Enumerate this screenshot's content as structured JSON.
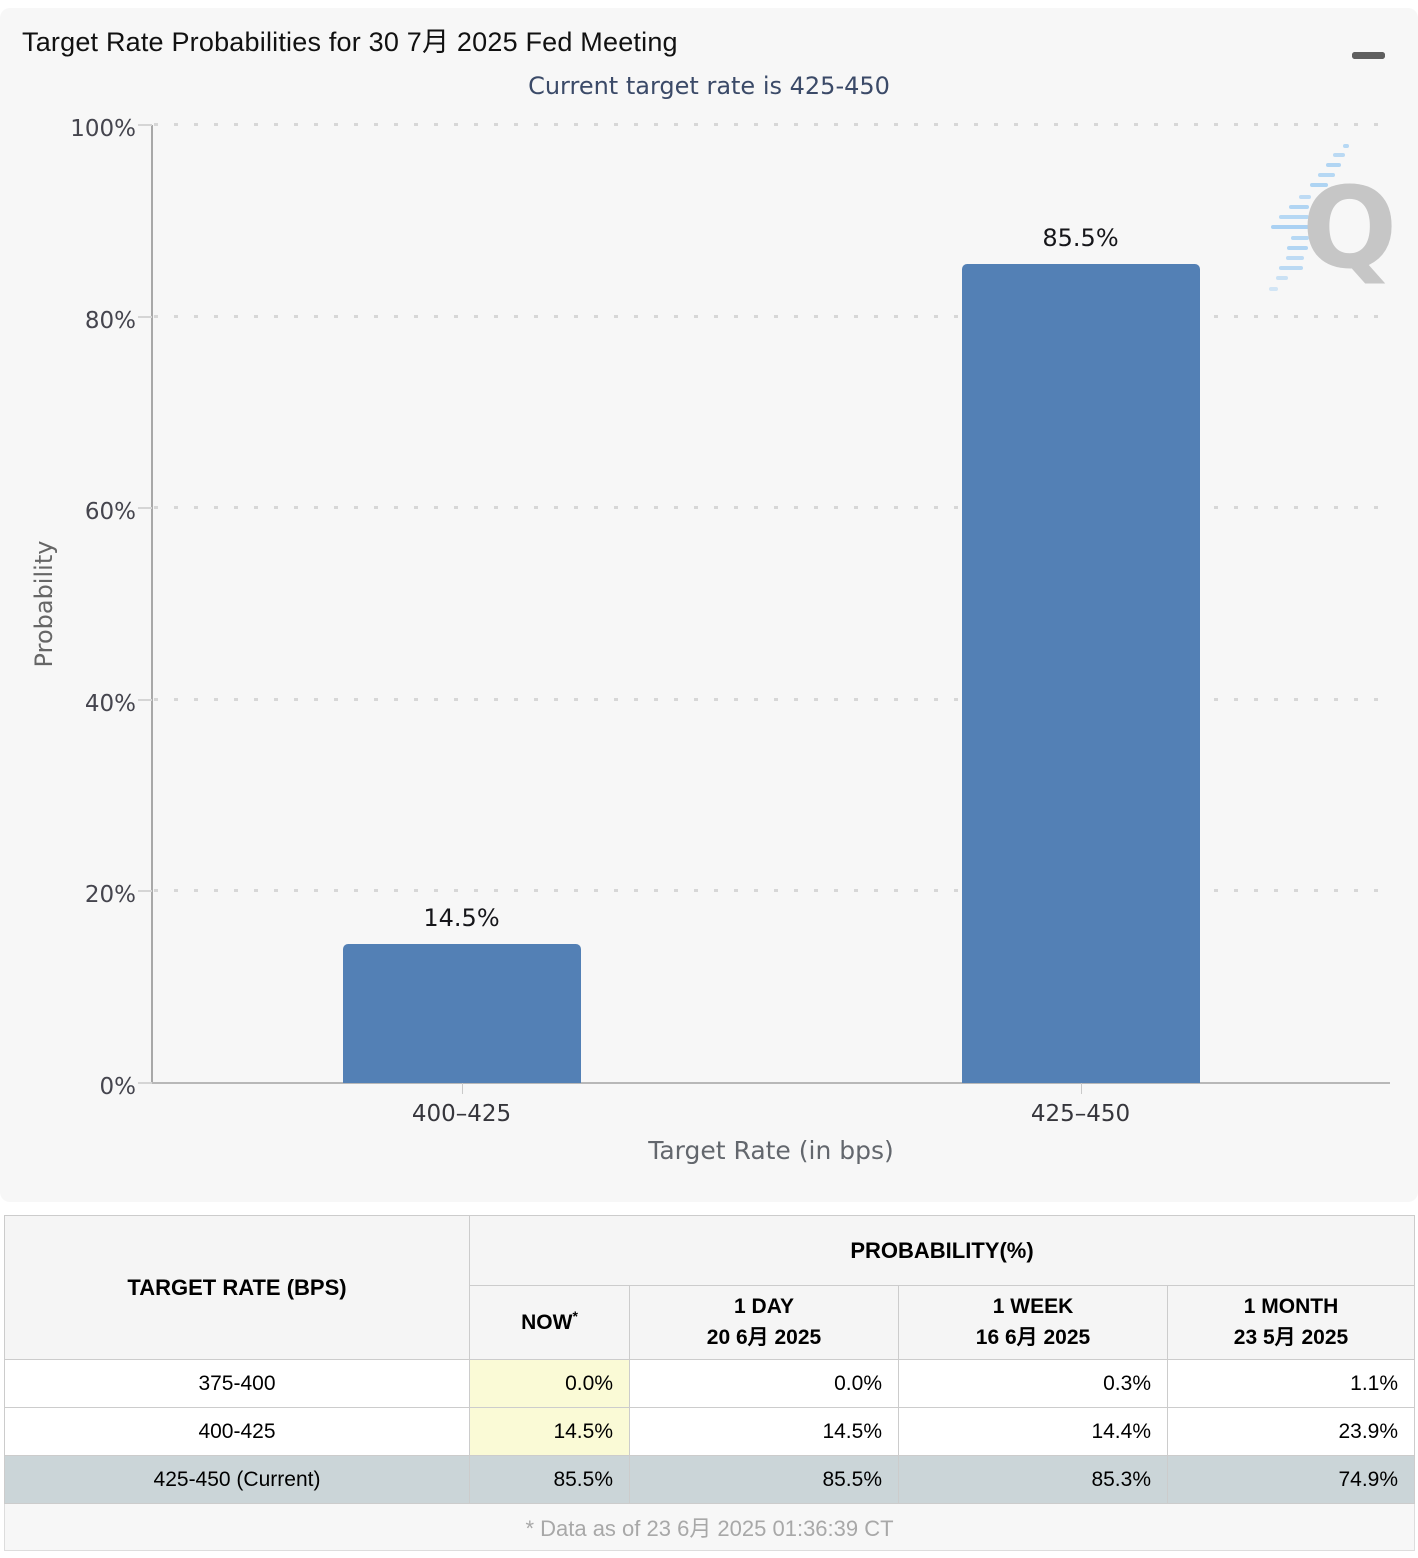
{
  "chart_data": {
    "type": "bar",
    "title": "Target Rate Probabilities for 30 7月 2025 Fed Meeting",
    "subtitle": "Current target rate is 425-450",
    "categories": [
      "400–425",
      "425–450"
    ],
    "values": [
      14.5,
      85.5
    ],
    "value_labels": [
      "14.5%",
      "85.5%"
    ],
    "xlabel": "Target Rate (in bps)",
    "ylabel": "Probability",
    "ylim": [
      0,
      100
    ],
    "yticks": [
      "0%",
      "20%",
      "40%",
      "60%",
      "80%",
      "100%"
    ],
    "grid": "dotted horizontal",
    "legend": "none",
    "bar_color": "#5380b5"
  },
  "watermark": {
    "letter": "Q"
  },
  "table": {
    "rate_header": "TARGET RATE (BPS)",
    "group_header": "PROBABILITY(%)",
    "columns": [
      {
        "label": "NOW",
        "sup": "*",
        "date": ""
      },
      {
        "label": "1 DAY",
        "date": "20 6月 2025"
      },
      {
        "label": "1 WEEK",
        "date": "16 6月 2025"
      },
      {
        "label": "1 MONTH",
        "date": "23 5月 2025"
      }
    ],
    "rows": [
      {
        "rate": "375-400",
        "now": "0.0%",
        "day": "0.0%",
        "week": "0.3%",
        "month": "1.1%",
        "current": false
      },
      {
        "rate": "400-425",
        "now": "14.5%",
        "day": "14.5%",
        "week": "14.4%",
        "month": "23.9%",
        "current": false
      },
      {
        "rate": "425-450 (Current)",
        "now": "85.5%",
        "day": "85.5%",
        "week": "85.3%",
        "month": "74.9%",
        "current": true
      }
    ],
    "footnote": "* Data as of 23 6月 2025 01:36:39 CT"
  },
  "colors": {
    "bar": "#5380b5",
    "subtitle": "#3b4a68",
    "now_column_bg": "#fafad6",
    "current_row_bg": "#cbd5d8",
    "card_bg": "#f7f7f7"
  }
}
